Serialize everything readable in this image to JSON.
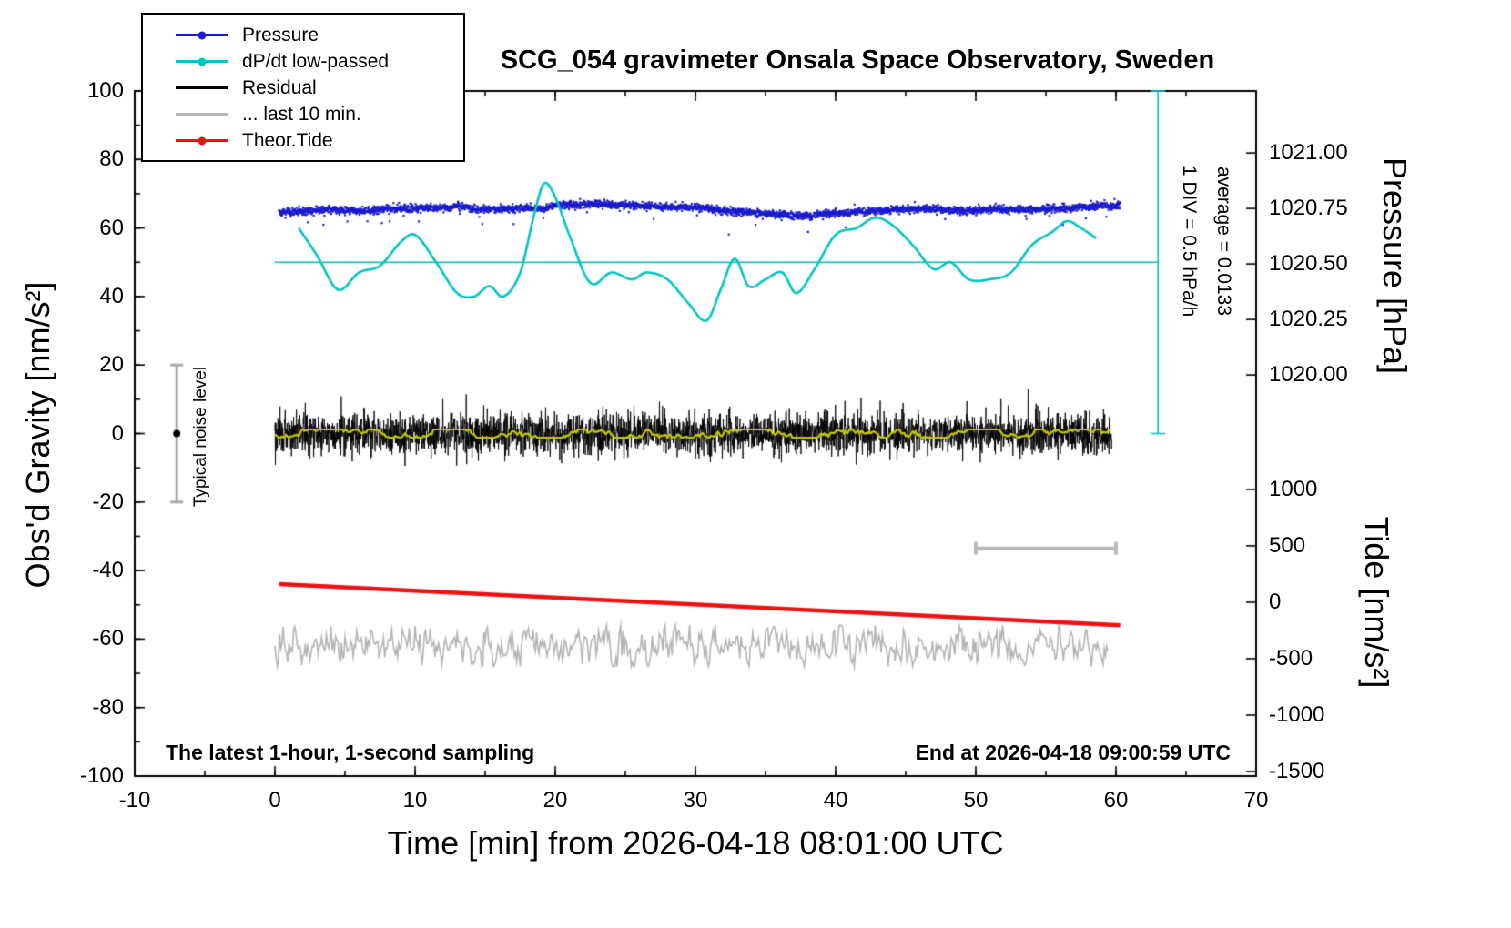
{
  "title": "SCG_054 gravimeter Onsala Space Observatory, Sweden",
  "annotations": {
    "div_note": "1 DIV = 0.5 hPa/h",
    "average_note": "average = 0.0133",
    "noise_label": "Typical noise level",
    "sampling_note": "The latest 1-hour, 1-second sampling",
    "end_note": "End at 2026-04-18 09:00:59 UTC"
  },
  "axes": {
    "x": {
      "label": "Time [min] from 2026-04-18 08:01:00 UTC"
    },
    "y_left": {
      "label": "Obs'd Gravity [nm/s²]"
    },
    "pressure": {
      "label": "Pressure [hPa]"
    },
    "tide": {
      "label": "Tide [nm/s²]"
    }
  },
  "legend": [
    {
      "key": "pressure",
      "label": "Pressure",
      "color": "#1a1ace",
      "marker": true
    },
    {
      "key": "dpdt-low-passed",
      "label": "dP/dt low-passed",
      "color": "#00c4c4",
      "marker": true
    },
    {
      "key": "residual",
      "label": "Residual",
      "color": "#000000",
      "marker": false
    },
    {
      "key": "last-10-min",
      "label": "... last 10 min.",
      "color": "#b4b4b4",
      "marker": false
    },
    {
      "key": "theor-tide",
      "label": "Theor.Tide",
      "color": "#ee1111",
      "marker": true
    }
  ],
  "chart_data": {
    "type": "line",
    "x_axis": {
      "label": "Time [min] from 2026-04-18 08:01:00 UTC",
      "min": -10,
      "max": 70,
      "ticks": [
        -10,
        0,
        10,
        20,
        30,
        40,
        50,
        60,
        70
      ],
      "minor_step": 5
    },
    "y_left": {
      "label": "Obs'd Gravity [nm/s²]",
      "min": -100,
      "max": 100,
      "ticks": [
        -100,
        -80,
        -60,
        -40,
        -20,
        0,
        20,
        40,
        60,
        80,
        100
      ],
      "minor_step": 10
    },
    "y_right_pressure": {
      "label": "Pressure [hPa]",
      "ticks": [
        {
          "label": "1021.00",
          "value": 1021.0
        },
        {
          "label": "1020.75",
          "value": 1020.75
        },
        {
          "label": "1020.50",
          "value": 1020.5
        },
        {
          "label": "1020.25",
          "value": 1020.25
        },
        {
          "label": "1020.00",
          "value": 1020.0
        }
      ]
    },
    "y_right_tide": {
      "label": "Tide [nm/s²]",
      "ticks": [
        {
          "label": "1000",
          "value": 1000
        },
        {
          "label": "500",
          "value": 500
        },
        {
          "label": "0",
          "value": 0
        },
        {
          "label": "-500",
          "value": -500
        },
        {
          "label": "-1000",
          "value": -1000
        },
        {
          "label": "-1500",
          "value": -1500
        }
      ]
    },
    "series": [
      {
        "name": "Pressure",
        "axis": "pressure",
        "color": "#1a1ace",
        "style": "noisy-dots",
        "units": "hPa",
        "noise_sigma_gravity_units": 0.55,
        "mean_points": [
          [
            0,
            1020.732
          ],
          [
            2,
            1020.736
          ],
          [
            4,
            1020.744
          ],
          [
            6,
            1020.739
          ],
          [
            8,
            1020.747
          ],
          [
            10,
            1020.752
          ],
          [
            12,
            1020.752
          ],
          [
            13,
            1020.76
          ],
          [
            14.5,
            1020.747
          ],
          [
            16,
            1020.747
          ],
          [
            18,
            1020.752
          ],
          [
            19,
            1020.747
          ],
          [
            20,
            1020.762
          ],
          [
            22,
            1020.768
          ],
          [
            24,
            1020.768
          ],
          [
            26,
            1020.762
          ],
          [
            28,
            1020.755
          ],
          [
            30,
            1020.755
          ],
          [
            31,
            1020.747
          ],
          [
            32,
            1020.739
          ],
          [
            34,
            1020.732
          ],
          [
            36,
            1020.724
          ],
          [
            37.5,
            1020.716
          ],
          [
            39,
            1020.724
          ],
          [
            41,
            1020.732
          ],
          [
            43,
            1020.739
          ],
          [
            45,
            1020.747
          ],
          [
            47,
            1020.747
          ],
          [
            49,
            1020.739
          ],
          [
            51,
            1020.747
          ],
          [
            53,
            1020.747
          ],
          [
            55,
            1020.747
          ],
          [
            57,
            1020.755
          ],
          [
            59,
            1020.762
          ],
          [
            60.3,
            1020.762
          ]
        ]
      },
      {
        "name": "dP/dt low-passed",
        "axis": "gravity",
        "color": "#00c4c4",
        "style": "smooth",
        "reference_level": 50,
        "average": 0.0133,
        "div_value_hPa_per_h": 0.5,
        "points": [
          [
            1.7,
            60
          ],
          [
            3,
            52
          ],
          [
            4.5,
            42
          ],
          [
            6,
            47
          ],
          [
            7.5,
            49
          ],
          [
            9,
            56
          ],
          [
            10,
            58
          ],
          [
            11.5,
            50
          ],
          [
            13,
            41
          ],
          [
            14.2,
            40
          ],
          [
            15.3,
            43
          ],
          [
            16.3,
            40
          ],
          [
            17.5,
            47
          ],
          [
            18.5,
            64
          ],
          [
            19.2,
            73
          ],
          [
            20,
            69
          ],
          [
            21,
            58
          ],
          [
            22.5,
            44
          ],
          [
            24,
            47
          ],
          [
            25.5,
            45
          ],
          [
            26.5,
            47
          ],
          [
            28,
            45
          ],
          [
            29.5,
            38
          ],
          [
            30.8,
            33
          ],
          [
            31.8,
            42
          ],
          [
            32.8,
            51
          ],
          [
            33.8,
            43
          ],
          [
            35,
            45
          ],
          [
            36.2,
            47
          ],
          [
            37.2,
            41
          ],
          [
            38.5,
            48
          ],
          [
            40,
            58
          ],
          [
            41.5,
            60
          ],
          [
            42.8,
            63
          ],
          [
            44,
            61
          ],
          [
            45.5,
            55
          ],
          [
            47,
            48
          ],
          [
            48.2,
            50
          ],
          [
            49.5,
            45
          ],
          [
            51,
            45
          ],
          [
            52.5,
            47
          ],
          [
            54,
            55
          ],
          [
            55.5,
            59
          ],
          [
            56.5,
            62
          ],
          [
            57.5,
            60
          ],
          [
            58.6,
            57
          ]
        ]
      },
      {
        "name": "Residual",
        "axis": "gravity",
        "color": "#000000",
        "style": "noise",
        "mean": 0,
        "sigma": 2.9,
        "x_range": [
          0,
          59.7
        ]
      },
      {
        "name": "Residual low-passed",
        "axis": "gravity",
        "color": "#c8c800",
        "style": "smooth-noise",
        "mean": 0,
        "amplitude": 1.2,
        "x_range": [
          0,
          59.7
        ]
      },
      {
        "name": "... last 10 min.",
        "axis": "gravity",
        "color": "#b4b4b4",
        "style": "smooth-noise",
        "mean": -62,
        "amplitude": 3.0,
        "x_range": [
          0,
          59.5
        ]
      },
      {
        "name": "Theor.Tide",
        "axis": "tide",
        "color": "#ee1111",
        "style": "line",
        "points": [
          [
            0.3,
            160
          ],
          [
            60.3,
            -205
          ]
        ]
      }
    ],
    "markers": {
      "ref_line": {
        "y": 50,
        "x_from": 0,
        "x_to": 63
      },
      "div_bar": {
        "x": 63,
        "y_from": 0,
        "y_to": 100
      },
      "noise_bar": {
        "x": -7,
        "y_from": -20,
        "y_to": 20,
        "dot_y": 0
      },
      "scale_bar": {
        "x_from": 50,
        "x_to": 60,
        "y": -33.5
      }
    }
  }
}
